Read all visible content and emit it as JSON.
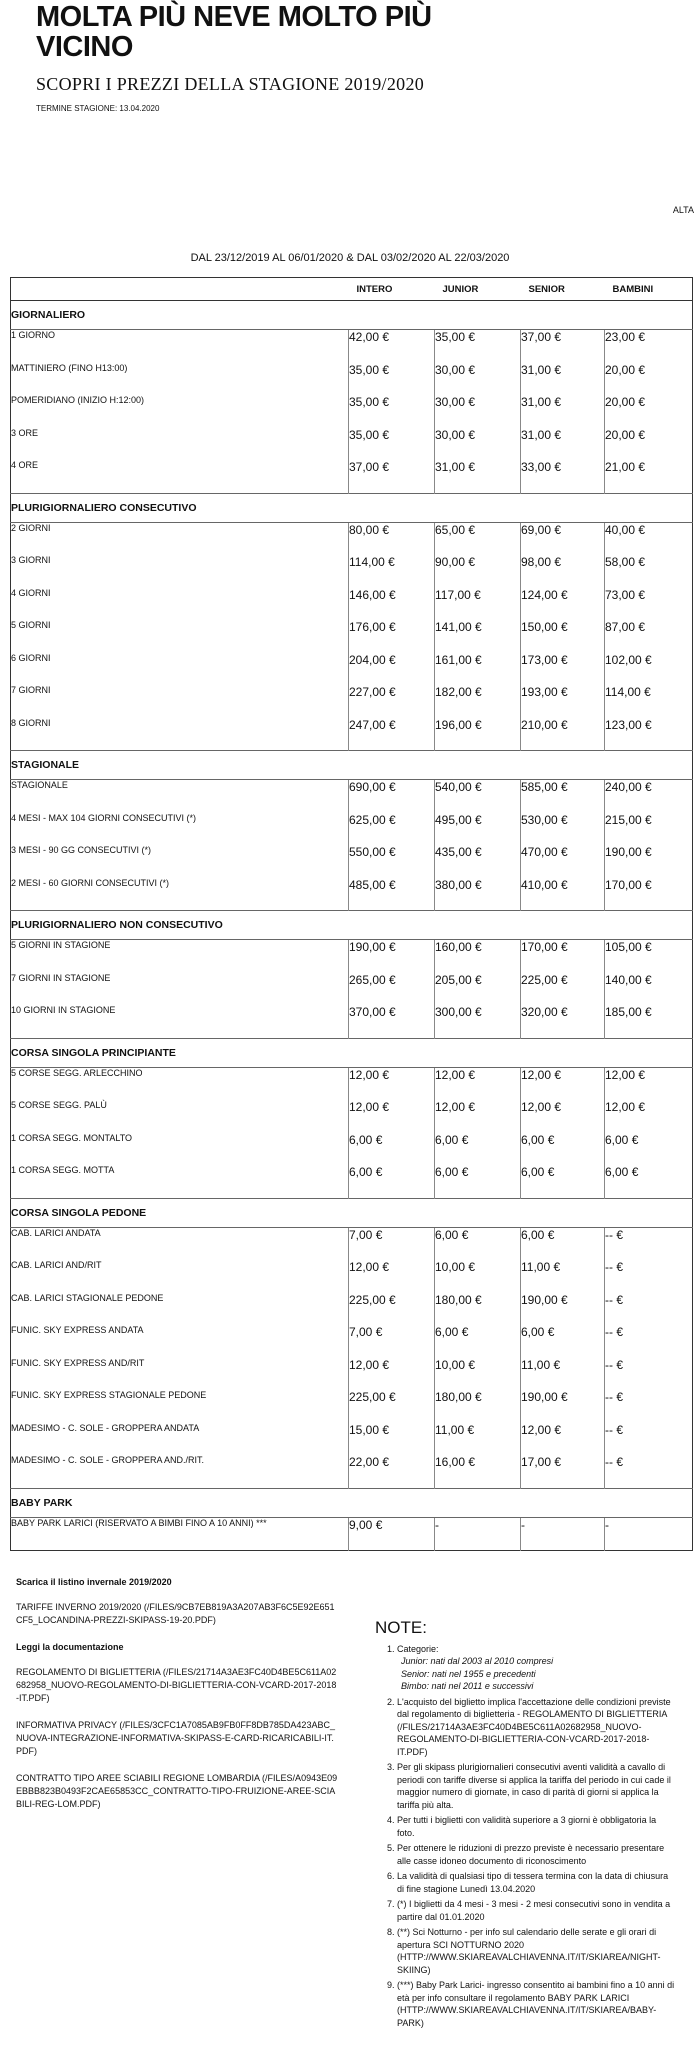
{
  "header": {
    "title": "MOLTA PIÙ NEVE MOLTO PIÙ VICINO",
    "subtitle": "SCOPRI I PREZZI DELLA STAGIONE 2019/2020",
    "season_end": "TERMINE STAGIONE: 13.04.2020",
    "tag": "ALTA",
    "period": "DAL 23/12/2019 AL 06/01/2020  &  DAL 03/02/2020 AL 22/03/2020"
  },
  "table": {
    "columns": [
      "INTERO",
      "JUNIOR",
      "SENIOR",
      "BAMBINI"
    ],
    "sections": [
      {
        "title": "GIORNALIERO",
        "rows": [
          {
            "label": "1 GIORNO",
            "prices": [
              "42,00 €",
              "35,00 €",
              "37,00 €",
              "23,00 €"
            ]
          },
          {
            "label": "MATTINIERO (FINO H13:00)",
            "prices": [
              "35,00 €",
              "30,00 €",
              "31,00 €",
              "20,00 €"
            ]
          },
          {
            "label": "POMERIDIANO (INIZIO H:12:00)",
            "prices": [
              "35,00 €",
              "30,00 €",
              "31,00 €",
              "20,00 €"
            ]
          },
          {
            "label": "3 ORE",
            "prices": [
              "35,00 €",
              "30,00 €",
              "31,00 €",
              "20,00 €"
            ]
          },
          {
            "label": "4 ORE",
            "prices": [
              "37,00 €",
              "31,00 €",
              "33,00 €",
              "21,00 €"
            ]
          }
        ]
      },
      {
        "title": "PLURIGIORNALIERO CONSECUTIVO",
        "rows": [
          {
            "label": "2 GIORNI",
            "prices": [
              "80,00 €",
              "65,00 €",
              "69,00 €",
              "40,00 €"
            ]
          },
          {
            "label": "3 GIORNI",
            "prices": [
              "114,00 €",
              "90,00 €",
              "98,00 €",
              "58,00 €"
            ]
          },
          {
            "label": "4 GIORNI",
            "prices": [
              "146,00 €",
              "117,00 €",
              "124,00 €",
              "73,00 €"
            ]
          },
          {
            "label": "5 GIORNI",
            "prices": [
              "176,00 €",
              "141,00 €",
              "150,00 €",
              "87,00 €"
            ]
          },
          {
            "label": "6 GIORNI",
            "prices": [
              "204,00 €",
              "161,00 €",
              "173,00 €",
              "102,00 €"
            ]
          },
          {
            "label": "7 GIORNI",
            "prices": [
              "227,00 €",
              "182,00 €",
              "193,00 €",
              "114,00 €"
            ]
          },
          {
            "label": "8 GIORNI",
            "prices": [
              "247,00 €",
              "196,00 €",
              "210,00 €",
              "123,00 €"
            ]
          }
        ]
      },
      {
        "title": "STAGIONALE",
        "rows": [
          {
            "label": "STAGIONALE",
            "prices": [
              "690,00 €",
              "540,00 €",
              "585,00 €",
              "240,00 €"
            ]
          },
          {
            "label": "4 MESI - MAX 104 GIORNI CONSECUTIVI (*)",
            "prices": [
              "625,00 €",
              "495,00 €",
              "530,00 €",
              "215,00 €"
            ]
          },
          {
            "label": "3 MESI - 90 GG CONSECUTIVI (*)",
            "prices": [
              "550,00 €",
              "435,00 €",
              "470,00 €",
              "190,00 €"
            ]
          },
          {
            "label": "2 MESI - 60 GIORNI CONSECUTIVI (*)",
            "prices": [
              "485,00 €",
              "380,00 €",
              "410,00 €",
              "170,00 €"
            ]
          }
        ]
      },
      {
        "title": "PLURIGIORNALIERO NON CONSECUTIVO",
        "rows": [
          {
            "label": "5 GIORNI IN STAGIONE",
            "prices": [
              "190,00 €",
              "160,00 €",
              "170,00 €",
              "105,00 €"
            ]
          },
          {
            "label": "7 GIORNI IN STAGIONE",
            "prices": [
              "265,00 €",
              "205,00 €",
              "225,00 €",
              "140,00 €"
            ]
          },
          {
            "label": "10 GIORNI IN STAGIONE",
            "prices": [
              "370,00 €",
              "300,00 €",
              "320,00 €",
              "185,00 €"
            ]
          }
        ]
      },
      {
        "title": "CORSA SINGOLA PRINCIPIANTE",
        "rows": [
          {
            "label": "5 CORSE SEGG. ARLECCHINO",
            "prices": [
              "12,00 €",
              "12,00 €",
              "12,00 €",
              "12,00 €"
            ]
          },
          {
            "label": "5 CORSE SEGG. PALÙ",
            "prices": [
              "12,00 €",
              "12,00 €",
              "12,00 €",
              "12,00 €"
            ]
          },
          {
            "label": "1 CORSA SEGG. MONTALTO",
            "prices": [
              "6,00 €",
              "6,00 €",
              "6,00 €",
              "6,00 €"
            ]
          },
          {
            "label": "1 CORSA SEGG. MOTTA",
            "prices": [
              "6,00 €",
              "6,00 €",
              "6,00 €",
              "6,00 €"
            ]
          }
        ]
      },
      {
        "title": "CORSA SINGOLA PEDONE",
        "rows": [
          {
            "label": "CAB. LARICI ANDATA",
            "prices": [
              "7,00 €",
              "6,00 €",
              "6,00 €",
              "-- €"
            ]
          },
          {
            "label": "CAB. LARICI AND/RIT",
            "prices": [
              "12,00 €",
              "10,00 €",
              "11,00 €",
              "-- €"
            ]
          },
          {
            "label": "CAB. LARICI STAGIONALE PEDONE",
            "prices": [
              "225,00 €",
              "180,00 €",
              "190,00 €",
              "-- €"
            ]
          },
          {
            "label": "FUNIC. SKY EXPRESS ANDATA",
            "prices": [
              "7,00 €",
              "6,00 €",
              "6,00 €",
              "-- €"
            ]
          },
          {
            "label": "FUNIC. SKY EXPRESS AND/RIT",
            "prices": [
              "12,00 €",
              "10,00 €",
              "11,00 €",
              "-- €"
            ]
          },
          {
            "label": "FUNIC. SKY EXPRESS STAGIONALE PEDONE",
            "prices": [
              "225,00 €",
              "180,00 €",
              "190,00 €",
              "-- €"
            ]
          },
          {
            "label": "MADESIMO - C. SOLE - GROPPERA ANDATA",
            "prices": [
              "15,00 €",
              "11,00 €",
              "12,00 €",
              "-- €"
            ]
          },
          {
            "label": "MADESIMO - C. SOLE - GROPPERA AND./RIT.",
            "prices": [
              "22,00 €",
              "16,00 €",
              "17,00 €",
              "-- €"
            ]
          }
        ]
      },
      {
        "title": "BABY PARK",
        "rows": [
          {
            "label": "BABY PARK LARICI (RISERVATO A BIMBI FINO A 10 ANNI) ***",
            "prices": [
              "9,00 €",
              "-",
              "-",
              "-"
            ]
          }
        ]
      }
    ]
  },
  "footer": {
    "download_heading": "Scarica il listino invernale 2019/2020",
    "downloads": [
      "TARIFFE INVERNO 2019/2020 (/FILES/9CB7EB819A3A207AB3F6C5E92E651CF5_LOCANDINA-PREZZI-SKIPASS-19-20.PDF)"
    ],
    "docs_heading": "Leggi la documentazione",
    "docs": [
      "REGOLAMENTO DI BIGLIETTERIA (/FILES/21714A3AE3FC40D4BE5C611A02682958_NUOVO-REGOLAMENTO-DI-BIGLIETTERIA-CON-VCARD-2017-2018-IT.PDF)",
      "INFORMATIVA PRIVACY (/FILES/3CFC1A7085AB9FB0FF8DB785DA423ABC_NUOVA-INTEGRAZIONE-INFORMATIVA-SKIPASS-E-CARD-RICARICABILI-IT.PDF)",
      "CONTRATTO TIPO AREE SCIABILI REGIONE LOMBARDIA (/FILES/A0943E09EBBB823B0493F2CAE65853CC_CONTRATTO-TIPO-FRUIZIONE-AREE-SCIABILI-REG-LOM.PDF)"
    ]
  },
  "notes": {
    "title": "NOTE:",
    "items": [
      {
        "text": "Categorie:",
        "sub": [
          "Junior: nati dal 2003 al 2010 compresi",
          "Senior: nati nel 1955 e precedenti",
          "Bimbo: nati nel 2011 e successivi"
        ]
      },
      {
        "text": "L'acquisto del biglietto implica l'accettazione delle condizioni previste dal regolamento di biglietteria - REGOLAMENTO DI BIGLIETTERIA (/FILES/21714A3AE3FC40D4BE5C611A02682958_NUOVO-REGOLAMENTO-DI-BIGLIETTERIA-CON-VCARD-2017-2018-IT.PDF)"
      },
      {
        "text": "Per gli skipass plurigiornalieri consecutivi aventi validità a cavallo di periodi con tariffe diverse si applica la tariffa del periodo in cui cade il maggior numero di giornate, in caso di parità di giorni si applica la tariffa più alta."
      },
      {
        "text": "Per tutti i biglietti con validità superiore a 3 giorni è obbligatoria la foto."
      },
      {
        "text": "Per ottenere le riduzioni di prezzo previste è necessario presentare alle casse idoneo documento di riconoscimento"
      },
      {
        "text": "La validità di qualsiasi tipo di tessera termina con la data di chiusura di fine stagione Lunedì 13.04.2020"
      },
      {
        "text": "(*) I biglietti da 4 mesi - 3 mesi - 2 mesi consecutivi sono in vendita a partire dal 01.01.2020"
      },
      {
        "text": "(**) Sci Notturno - per info sul calendario delle serate e gli orari di apertura SCI NOTTURNO 2020 (HTTP://WWW.SKIAREAVALCHIAVENNA.IT/IT/SKIAREA/NIGHT-SKIING)"
      },
      {
        "text": "(***) Baby Park Larici- ingresso consentito ai bambini fino a 10 anni di età per info consultare il regolamento BABY PARK LARICI (HTTP://WWW.SKIAREAVALCHIAVENNA.IT/IT/SKIAREA/BABY-PARK)"
      }
    ]
  }
}
